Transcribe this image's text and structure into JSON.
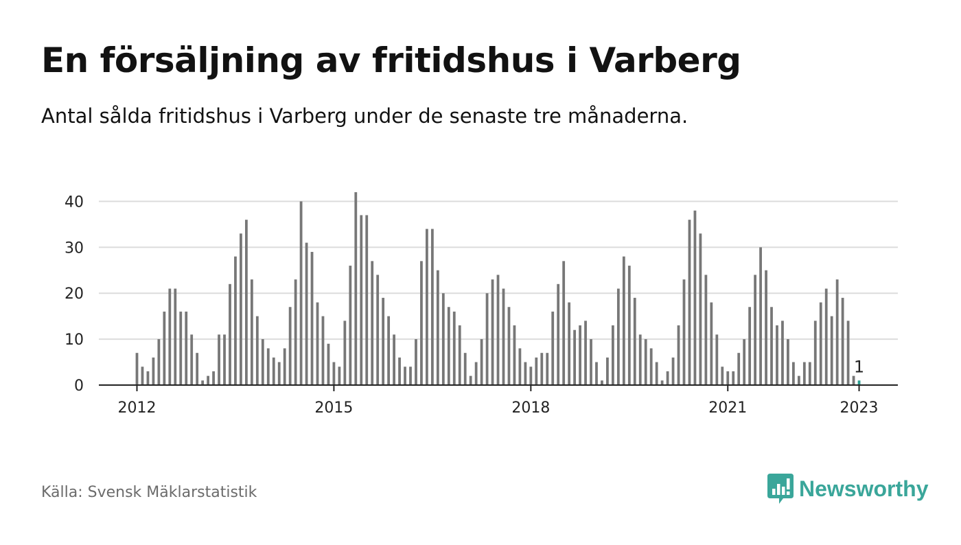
{
  "title": "En försäljning av fritidshus i Varberg",
  "subtitle": "Antal sålda fritidshus i Varberg under de senaste tre månaderna.",
  "source": "Källa: Svensk Mäklarstatistik",
  "brand": {
    "name": "Newsworthy",
    "color": "#3aa69a",
    "icon": "bar-chart-speech-bubble-icon"
  },
  "colors": {
    "bar": "#777777",
    "highlight": "#2a9d8f",
    "grid": "#dcdcdc",
    "axis": "#222222"
  },
  "chart_data": {
    "type": "bar",
    "title": "",
    "xlabel": "",
    "ylabel": "",
    "ylim": [
      0,
      42
    ],
    "yticks": [
      0,
      10,
      20,
      30,
      40
    ],
    "grid": true,
    "legend": "none",
    "x_start": "2012-01",
    "xtick_labels": [
      "2012",
      "2015",
      "2018",
      "2021",
      "2023"
    ],
    "series": [
      {
        "values": [
          7,
          4,
          3,
          6,
          10,
          16,
          21,
          21,
          16,
          16,
          11,
          7,
          1,
          2,
          3,
          11,
          11,
          22,
          28,
          33,
          36,
          23,
          15,
          10,
          8,
          6,
          5,
          8,
          17,
          23,
          40,
          31,
          29,
          18,
          15,
          9,
          5,
          4,
          14,
          26,
          42,
          37,
          37,
          27,
          24,
          19,
          15,
          11,
          6,
          4,
          4,
          10,
          27,
          34,
          34,
          25,
          20,
          17,
          16,
          13,
          7,
          2,
          5,
          10,
          20,
          23,
          24,
          21,
          17,
          13,
          8,
          5,
          4,
          6,
          7,
          7,
          16,
          22,
          27,
          18,
          12,
          13,
          14,
          10,
          5,
          1,
          6,
          13,
          21,
          28,
          26,
          19,
          11,
          10,
          8,
          5,
          1,
          3,
          6,
          13,
          23,
          36,
          38,
          33,
          24,
          18,
          11,
          4,
          3,
          3,
          7,
          10,
          17,
          24,
          30,
          25,
          17,
          13,
          14,
          10,
          5,
          2,
          5,
          5,
          14,
          18,
          21,
          15,
          23,
          19,
          14,
          2,
          1
        ]
      }
    ],
    "highlight": {
      "x": "2023-01",
      "value": 1,
      "label": "1"
    }
  }
}
